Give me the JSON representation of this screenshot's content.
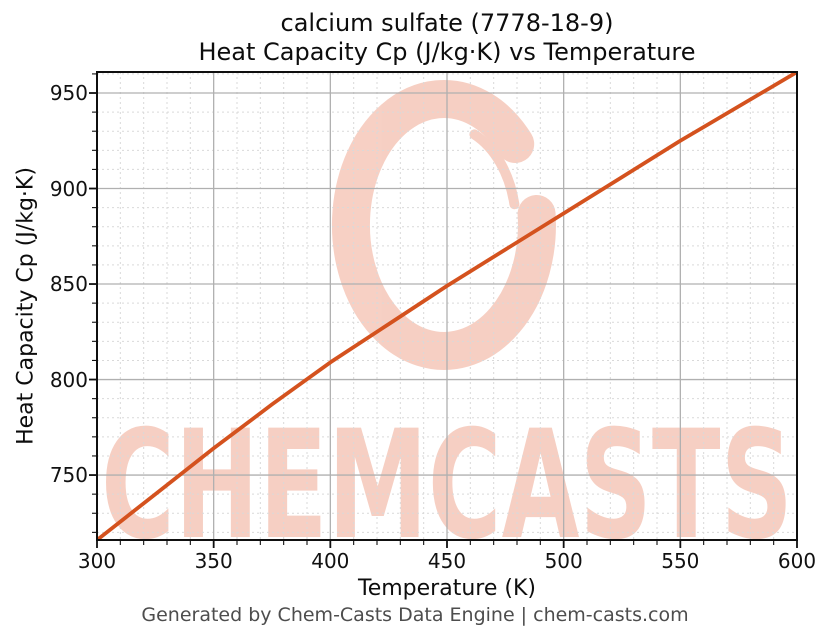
{
  "watermark": {
    "text": "CHEMCASTS",
    "color": "#e66e46",
    "opacity": 0.32
  },
  "footer": {
    "text": "Generated by Chem-Casts Data Engine | chem-casts.com"
  },
  "chart_data": {
    "type": "line",
    "title_line1": "calcium sulfate (7778-18-9)",
    "title_line2": "Heat Capacity Cp (J/kg·K) vs Temperature",
    "xlabel": "Temperature (K)",
    "ylabel": "Heat Capacity Cp (J/kg·K)",
    "xlim": [
      300,
      600
    ],
    "ylim": [
      716,
      961
    ],
    "xticks": [
      300,
      350,
      400,
      450,
      500,
      550,
      600
    ],
    "yticks": [
      750,
      800,
      850,
      900,
      950
    ],
    "x_minor_step": 10,
    "y_minor_step": 10,
    "grid": true,
    "legend": "none",
    "line_color": "#d4521e",
    "major_grid_color": "#b0b0b0",
    "minor_grid_color": "#d9d9d9",
    "series": [
      {
        "name": "Heat Capacity Cp",
        "x": [
          300,
          325,
          350,
          375,
          400,
          425,
          450,
          475,
          500,
          525,
          550,
          575,
          600
        ],
        "y": [
          716,
          740,
          764,
          787,
          809,
          829,
          849,
          868,
          887,
          906,
          925,
          943,
          961
        ]
      }
    ]
  }
}
